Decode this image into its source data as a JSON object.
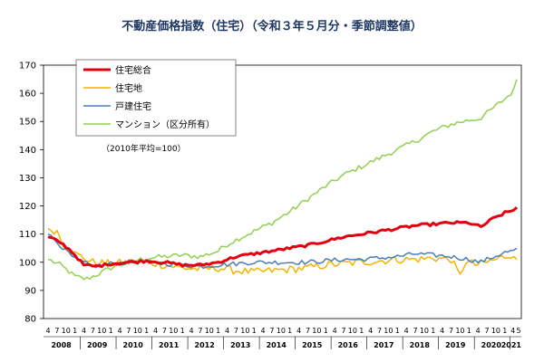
{
  "chart_data": {
    "type": "line",
    "title": "不動産価格指数（住宅）（令和３年５月分・季節調整値）",
    "note": "（2010年平均=100）",
    "xlabel": "",
    "ylabel": "",
    "ylim": [
      80,
      170
    ],
    "yticks": [
      80,
      90,
      100,
      110,
      120,
      130,
      140,
      150,
      160,
      170
    ],
    "month_tick_labels": [
      "4",
      "7",
      "10",
      "1"
    ],
    "final_month_labels": [
      "4",
      "5"
    ],
    "years": [
      "2008",
      "2009",
      "2010",
      "2011",
      "2012",
      "2013",
      "2014",
      "2015",
      "2016",
      "2017",
      "2018",
      "2019",
      "2020",
      "2021"
    ],
    "x_start": "2008-04",
    "x_end": "2021-05",
    "grid": false,
    "legend_position": "top-left",
    "series": [
      {
        "name": "住宅総合",
        "color": "#e3000f",
        "width": 3,
        "keypoints": [
          [
            2008.25,
            109
          ],
          [
            2008.6,
            107
          ],
          [
            2008.9,
            104
          ],
          [
            2009.25,
            99
          ],
          [
            2009.6,
            98.5
          ],
          [
            2010.0,
            99.5
          ],
          [
            2010.5,
            100
          ],
          [
            2011.0,
            100.5
          ],
          [
            2011.5,
            100
          ],
          [
            2012.0,
            99
          ],
          [
            2012.5,
            99
          ],
          [
            2013.0,
            100
          ],
          [
            2013.5,
            102
          ],
          [
            2014.0,
            103
          ],
          [
            2014.5,
            104
          ],
          [
            2015.0,
            105
          ],
          [
            2015.5,
            106
          ],
          [
            2016.0,
            107.5
          ],
          [
            2016.5,
            109
          ],
          [
            2017.0,
            110
          ],
          [
            2017.5,
            111
          ],
          [
            2018.0,
            112
          ],
          [
            2018.5,
            113
          ],
          [
            2019.0,
            113.5
          ],
          [
            2019.5,
            114
          ],
          [
            2020.0,
            114
          ],
          [
            2020.33,
            112.5
          ],
          [
            2020.6,
            115
          ],
          [
            2021.0,
            117.5
          ],
          [
            2021.25,
            118.5
          ],
          [
            2021.33,
            119.5
          ]
        ]
      },
      {
        "name": "住宅地",
        "color": "#f4b400",
        "width": 1.5,
        "keypoints": [
          [
            2008.25,
            112
          ],
          [
            2008.5,
            111
          ],
          [
            2008.7,
            106
          ],
          [
            2009.0,
            103
          ],
          [
            2009.5,
            100
          ],
          [
            2010.0,
            99.5
          ],
          [
            2010.5,
            100
          ],
          [
            2011.0,
            100
          ],
          [
            2011.5,
            99
          ],
          [
            2012.0,
            98
          ],
          [
            2012.5,
            97.5
          ],
          [
            2013.0,
            98
          ],
          [
            2013.5,
            97
          ],
          [
            2014.0,
            96.5
          ],
          [
            2014.5,
            97
          ],
          [
            2015.0,
            97.5
          ],
          [
            2015.5,
            98
          ],
          [
            2016.0,
            99
          ],
          [
            2016.5,
            99.5
          ],
          [
            2017.0,
            100
          ],
          [
            2017.5,
            100.5
          ],
          [
            2018.0,
            101
          ],
          [
            2018.5,
            101
          ],
          [
            2019.0,
            101.5
          ],
          [
            2019.5,
            101
          ],
          [
            2019.75,
            95
          ],
          [
            2019.9,
            100.5
          ],
          [
            2020.2,
            99
          ],
          [
            2020.5,
            100
          ],
          [
            2021.0,
            102
          ],
          [
            2021.25,
            103
          ],
          [
            2021.33,
            101
          ]
        ]
      },
      {
        "name": "戸建住宅",
        "color": "#4a7ebb",
        "width": 1.5,
        "keypoints": [
          [
            2008.25,
            110
          ],
          [
            2008.6,
            106
          ],
          [
            2009.0,
            101
          ],
          [
            2009.5,
            98.5
          ],
          [
            2010.0,
            99.5
          ],
          [
            2010.5,
            100
          ],
          [
            2011.0,
            100
          ],
          [
            2011.5,
            99.5
          ],
          [
            2012.0,
            99
          ],
          [
            2012.5,
            98.5
          ],
          [
            2013.0,
            99
          ],
          [
            2013.5,
            99.5
          ],
          [
            2014.0,
            100
          ],
          [
            2014.5,
            100
          ],
          [
            2015.0,
            100
          ],
          [
            2015.5,
            100
          ],
          [
            2016.0,
            100.5
          ],
          [
            2016.5,
            101
          ],
          [
            2017.0,
            101
          ],
          [
            2017.5,
            101.5
          ],
          [
            2018.0,
            102
          ],
          [
            2018.5,
            103
          ],
          [
            2019.0,
            102.5
          ],
          [
            2019.5,
            102
          ],
          [
            2020.0,
            101
          ],
          [
            2020.3,
            100
          ],
          [
            2020.6,
            101.5
          ],
          [
            2021.0,
            103.5
          ],
          [
            2021.25,
            104
          ],
          [
            2021.33,
            105
          ]
        ]
      },
      {
        "name": "マンション（区分所有）",
        "color": "#92d050",
        "width": 1.5,
        "keypoints": [
          [
            2008.25,
            101
          ],
          [
            2008.6,
            99
          ],
          [
            2009.0,
            95
          ],
          [
            2009.3,
            94
          ],
          [
            2009.6,
            95.5
          ],
          [
            2010.0,
            98
          ],
          [
            2010.5,
            100
          ],
          [
            2011.0,
            101.5
          ],
          [
            2011.5,
            102
          ],
          [
            2012.0,
            102.5
          ],
          [
            2012.5,
            102
          ],
          [
            2013.0,
            104
          ],
          [
            2013.2,
            106
          ],
          [
            2013.5,
            108
          ],
          [
            2014.0,
            111
          ],
          [
            2014.5,
            114
          ],
          [
            2015.0,
            118
          ],
          [
            2015.5,
            122.5
          ],
          [
            2016.0,
            127
          ],
          [
            2016.5,
            131
          ],
          [
            2017.0,
            134
          ],
          [
            2017.5,
            137
          ],
          [
            2018.0,
            140
          ],
          [
            2018.5,
            143
          ],
          [
            2019.0,
            146.5
          ],
          [
            2019.5,
            149
          ],
          [
            2020.0,
            150.5
          ],
          [
            2020.3,
            151
          ],
          [
            2020.6,
            154
          ],
          [
            2021.0,
            158
          ],
          [
            2021.25,
            161
          ],
          [
            2021.33,
            165
          ]
        ]
      }
    ]
  }
}
